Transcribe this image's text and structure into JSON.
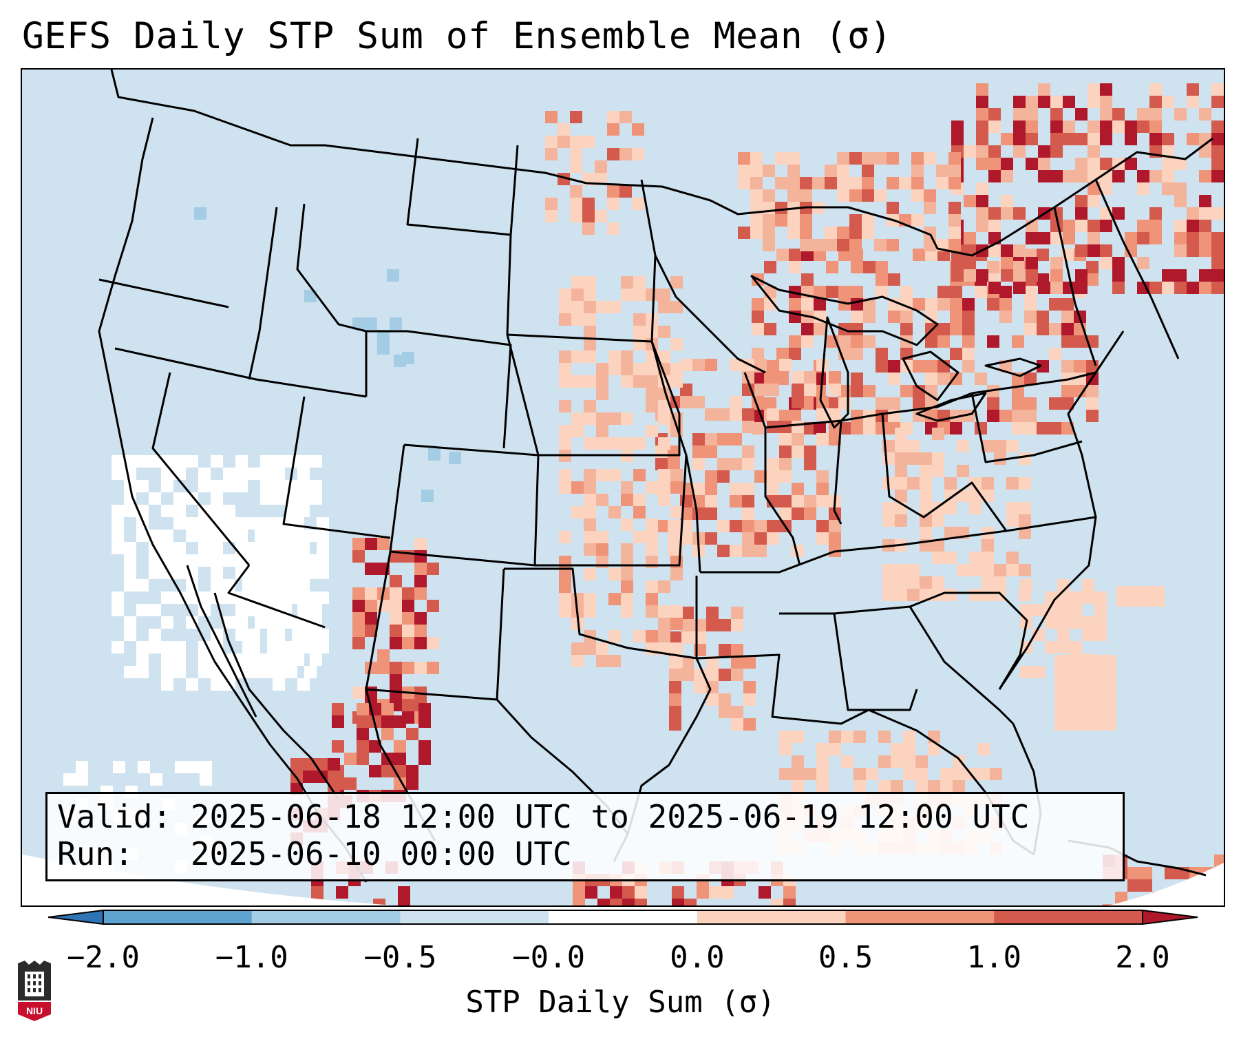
{
  "title": "GEFS Daily STP Sum of Ensemble Mean (σ)",
  "valid_line": "Valid: 2025-06-18 12:00 UTC to 2025-06-19 12:00 UTC",
  "run_line": "Run:   2025-06-10 00:00 UTC",
  "colorbar": {
    "label": "STP Daily Sum (σ)",
    "ticks": [
      "−2.0",
      "−1.0",
      "−0.5",
      "−0.0",
      "0.0",
      "0.5",
      "1.0",
      "2.0"
    ],
    "colors": [
      "#2f74b5",
      "#5fa4d1",
      "#a4cce4",
      "#cfe2ef",
      "#ffffff",
      "#fbd3bf",
      "#ef9478",
      "#d35a4c",
      "#b0182b"
    ],
    "extend": "both"
  },
  "logo": {
    "text": "NIU",
    "icon": "university-shield-icon"
  },
  "colors": {
    "ocean": "#cfe2ef",
    "land_base": "#d3e5f0",
    "border": "#000000"
  }
}
